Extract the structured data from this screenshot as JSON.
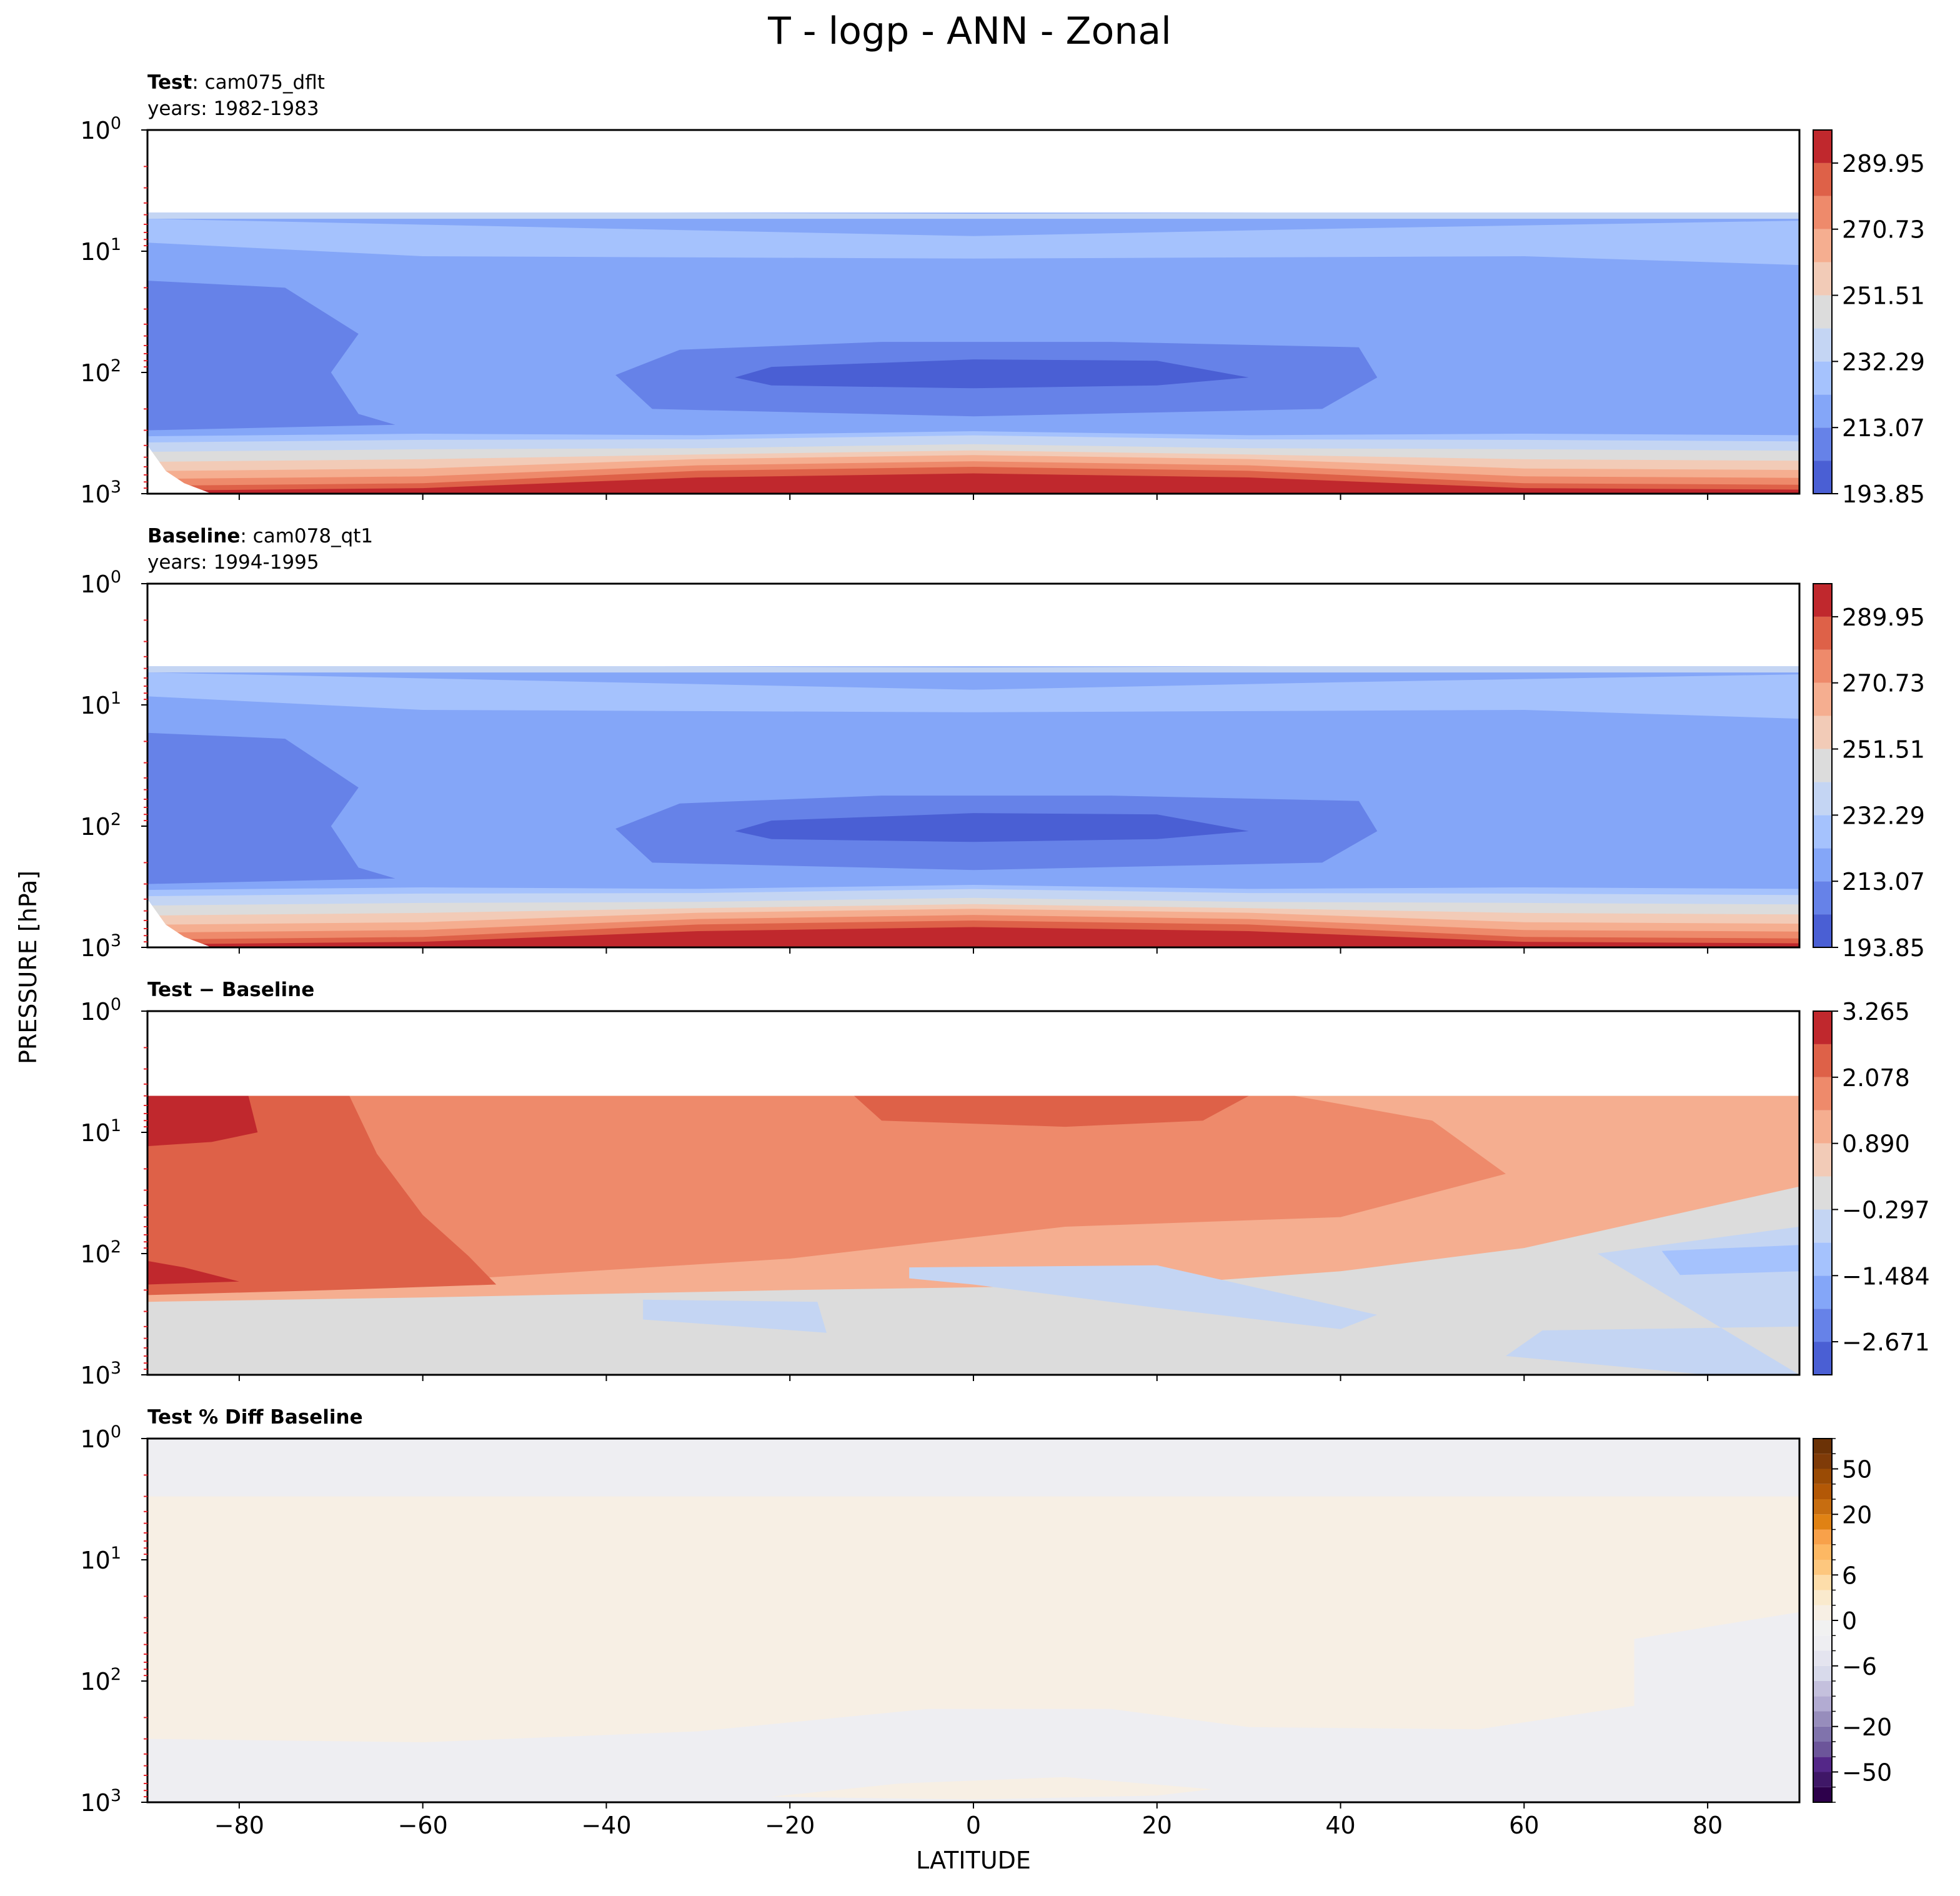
{
  "chart_data": {
    "type": "contour",
    "title": "T - logp - ANN - Zonal",
    "xlabel": "LATITUDE",
    "ylabel": "PRESSURE [hPa]",
    "x_ticks": [
      -80,
      -60,
      -40,
      -20,
      0,
      20,
      40,
      60,
      80
    ],
    "x_tick_labels": [
      "−80",
      "−60",
      "−40",
      "−20",
      "0",
      "20",
      "40",
      "60",
      "80"
    ],
    "xlim": [
      -90,
      90
    ],
    "y_scale": "log",
    "ylim": [
      1000,
      1
    ],
    "y_inverted": true,
    "y_ticks": [
      1,
      10,
      100,
      1000
    ],
    "y_minor_tick_color": "#e8232a",
    "panels": [
      {
        "id": "test",
        "title_bold": "Test",
        "title_rest": ": cam075_dflt",
        "subtitle": "years: 1982-1983",
        "colormap": "coolwarm",
        "levels": [
          193.85,
          203.46,
          213.07,
          222.68,
          232.29,
          241.9,
          251.51,
          261.12,
          270.73,
          280.34,
          289.95,
          299.56
        ],
        "colorbar_ticks": [
          193.85,
          213.07,
          232.29,
          251.51,
          270.73,
          289.95
        ],
        "colorbar_tick_labels": [
          "193.85",
          "213.07",
          "232.29",
          "251.51",
          "270.73",
          "289.95"
        ],
        "colors": [
          "#4a5fd4",
          "#6682e8",
          "#84a6f8",
          "#a5c2fd",
          "#c4d5f3",
          "#dcdcdc",
          "#f2cbb7",
          "#f5ae90",
          "#ee8a6b",
          "#de6148",
          "#c0282d"
        ]
      },
      {
        "id": "baseline",
        "title_bold": "Baseline",
        "title_rest": ": cam078_qt1",
        "subtitle": "years: 1994-1995",
        "colormap": "coolwarm",
        "levels": [
          193.85,
          203.46,
          213.07,
          222.68,
          232.29,
          241.9,
          251.51,
          261.12,
          270.73,
          280.34,
          289.95,
          299.56
        ],
        "colorbar_ticks": [
          193.85,
          213.07,
          232.29,
          251.51,
          270.73,
          289.95
        ],
        "colorbar_tick_labels": [
          "193.85",
          "213.07",
          "232.29",
          "251.51",
          "270.73",
          "289.95"
        ],
        "colors": [
          "#4a5fd4",
          "#6682e8",
          "#84a6f8",
          "#a5c2fd",
          "#c4d5f3",
          "#dcdcdc",
          "#f2cbb7",
          "#f5ae90",
          "#ee8a6b",
          "#de6148",
          "#c0282d"
        ]
      },
      {
        "id": "diff",
        "title_bold": "Test − Baseline",
        "title_rest": "",
        "subtitle": "",
        "colormap": "coolwarm",
        "levels": [
          -3.265,
          -2.671,
          -2.078,
          -1.484,
          -0.89,
          -0.297,
          0.297,
          0.89,
          1.484,
          2.078,
          2.671,
          3.265
        ],
        "colorbar_ticks": [
          3.265,
          2.078,
          0.89,
          -0.297,
          -1.484,
          -2.671
        ],
        "colorbar_tick_labels": [
          "3.265",
          "2.078",
          "0.890",
          "−0.297",
          "−1.484",
          "−2.671"
        ],
        "colors": [
          "#4a5fd4",
          "#6682e8",
          "#84a6f8",
          "#a5c2fd",
          "#c4d5f3",
          "#dcdcdc",
          "#f2cbb7",
          "#f5ae90",
          "#ee8a6b",
          "#de6148",
          "#c0282d"
        ]
      },
      {
        "id": "pctdiff",
        "title_bold": "Test % Diff Baseline",
        "title_rest": "",
        "subtitle": "",
        "colormap": "PuOr_r",
        "levels": [
          -100,
          -75,
          -50,
          -40,
          -30,
          -20,
          -15,
          -10,
          -8,
          -6,
          -4,
          -2,
          0,
          2,
          4,
          6,
          8,
          10,
          15,
          20,
          30,
          40,
          50,
          75,
          100
        ],
        "colorbar_ticks": [
          50,
          20,
          6,
          0,
          -6,
          -20,
          -50
        ],
        "colorbar_tick_labels": [
          "50",
          "20",
          "6",
          "0",
          "−6",
          "−20",
          "−50"
        ],
        "colors": [
          "#2d004b",
          "#3f1767",
          "#542788",
          "#6c559a",
          "#8073ac",
          "#978dbc",
          "#b2abd2",
          "#c4c0dd",
          "#d8daeb",
          "#e4e4ef",
          "#eeeef2",
          "#f1f1f1",
          "#f7efe4",
          "#faeacd",
          "#fdddaa",
          "#fdc77e",
          "#fdb863",
          "#f8a14a",
          "#e08214",
          "#c76d10",
          "#b35806",
          "#9a4b05",
          "#7f3b08",
          "#6b3206"
        ]
      }
    ]
  }
}
